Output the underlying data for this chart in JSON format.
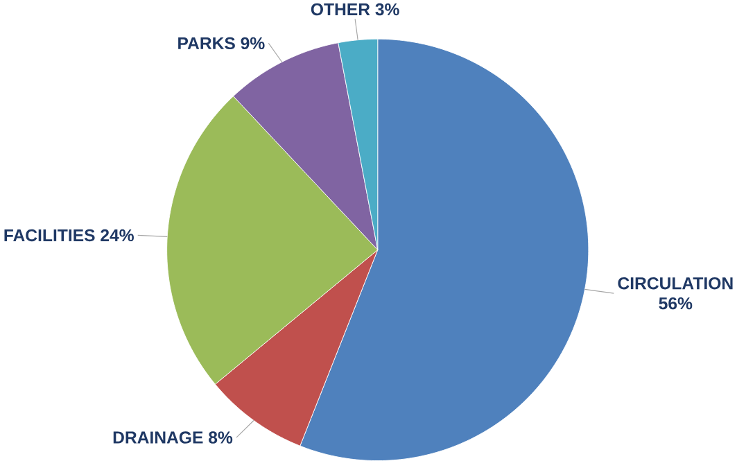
{
  "chart_data": {
    "type": "pie",
    "categories": [
      "CIRCULATION",
      "DRAINAGE",
      "FACILITIES",
      "PARKS",
      "OTHER"
    ],
    "values": [
      56,
      8,
      24,
      9,
      3
    ],
    "value_labels": [
      "56%",
      "8%",
      "24%",
      "9%",
      "3%"
    ],
    "colors": [
      "#4f81bd",
      "#c0504d",
      "#9bbb59",
      "#8064a2",
      "#4bacc6"
    ],
    "legend": false
  }
}
